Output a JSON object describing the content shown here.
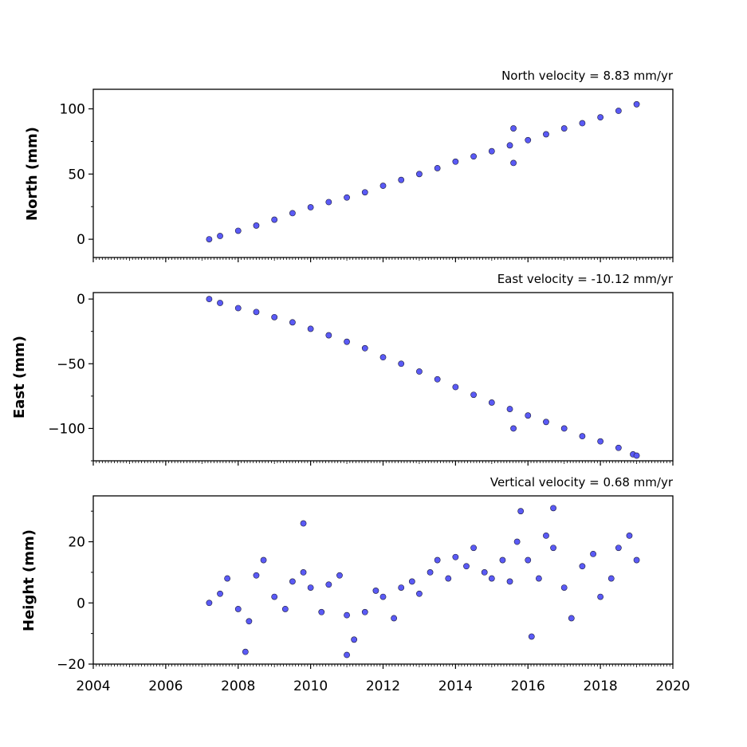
{
  "colors": {
    "marker_fill": "#5a5af5",
    "marker_edge": "#1a1a3a",
    "axes": "#000000",
    "background": "#ffffff"
  },
  "chart_data": [
    {
      "type": "scatter",
      "title": "North velocity = 8.83 mm/yr",
      "xlabel": "",
      "ylabel": "North (mm)",
      "xlim": [
        2004,
        2020
      ],
      "ylim": [
        -14,
        115
      ],
      "yticks": [
        0,
        50,
        100
      ],
      "ytick_labels": [
        "0",
        "50",
        "100"
      ],
      "grid": false,
      "series": [
        {
          "x": [
            2007.2,
            2007.5,
            2008.0,
            2008.5,
            2009.0,
            2009.5,
            2010.0,
            2010.5,
            2011.0,
            2011.5,
            2012.0,
            2012.5,
            2013.0,
            2013.5,
            2014.0,
            2014.5,
            2015.0,
            2015.5,
            2015.6,
            2015.6,
            2016.0,
            2016.5,
            2017.0,
            2017.5,
            2018.0,
            2018.5,
            2019.0
          ],
          "y": [
            0,
            2.5,
            6.5,
            10.5,
            15.0,
            20.0,
            24.5,
            28.5,
            32.0,
            36.0,
            41.0,
            45.5,
            50.0,
            54.5,
            59.5,
            63.5,
            67.5,
            72.0,
            85.0,
            58.5,
            76.0,
            80.5,
            85.0,
            89.0,
            93.5,
            98.5,
            103.5
          ]
        }
      ]
    },
    {
      "type": "scatter",
      "title": "East velocity = -10.12 mm/yr",
      "xlabel": "",
      "ylabel": "East (mm)",
      "xlim": [
        2004,
        2020
      ],
      "ylim": [
        -125,
        5
      ],
      "yticks": [
        0,
        -50,
        -100
      ],
      "ytick_labels": [
        "0",
        "−50",
        "−100"
      ],
      "grid": false,
      "series": [
        {
          "x": [
            2007.2,
            2007.5,
            2008.0,
            2008.5,
            2009.0,
            2009.5,
            2010.0,
            2010.5,
            2011.0,
            2011.5,
            2012.0,
            2012.5,
            2013.0,
            2013.5,
            2014.0,
            2014.5,
            2015.0,
            2015.5,
            2015.6,
            2016.0,
            2016.5,
            2017.0,
            2017.5,
            2018.0,
            2018.5,
            2018.9,
            2019.0
          ],
          "y": [
            0,
            -3,
            -7,
            -10,
            -14,
            -18,
            -23,
            -28,
            -33,
            -38,
            -45,
            -50,
            -56,
            -62,
            -68,
            -74,
            -80,
            -85,
            -100,
            -90,
            -95,
            -100,
            -106,
            -110,
            -115,
            -120,
            -121
          ]
        }
      ]
    },
    {
      "type": "scatter",
      "title": "Vertical velocity = 0.68 mm/yr",
      "xlabel": "",
      "ylabel": "Height (mm)",
      "xlim": [
        2004,
        2020
      ],
      "ylim": [
        -20,
        35
      ],
      "yticks": [
        -20,
        0,
        20
      ],
      "ytick_labels": [
        "−20",
        "0",
        "20"
      ],
      "xticks": [
        2004,
        2006,
        2008,
        2010,
        2012,
        2014,
        2016,
        2018,
        2020
      ],
      "xtick_labels": [
        "2004",
        "2006",
        "2008",
        "2010",
        "2012",
        "2014",
        "2016",
        "2018",
        "2020"
      ],
      "grid": false,
      "series": [
        {
          "x": [
            2007.2,
            2007.5,
            2007.7,
            2008.0,
            2008.3,
            2008.5,
            2008.7,
            2009.0,
            2009.3,
            2009.5,
            2009.8,
            2010.0,
            2010.3,
            2010.5,
            2010.8,
            2011.0,
            2011.2,
            2011.5,
            2011.8,
            2012.0,
            2012.3,
            2012.5,
            2012.8,
            2013.0,
            2013.3,
            2013.5,
            2013.8,
            2014.0,
            2014.3,
            2014.5,
            2014.8,
            2015.0,
            2015.3,
            2015.5,
            2015.7,
            2015.8,
            2016.0,
            2016.3,
            2016.5,
            2016.7,
            2017.0,
            2017.2,
            2017.5,
            2017.8,
            2018.0,
            2018.3,
            2018.5,
            2018.8,
            2019.0,
            2009.8,
            2016.1,
            2016.7,
            2011.0,
            2008.2
          ],
          "y": [
            0,
            3,
            8,
            -2,
            -6,
            9,
            14,
            2,
            -2,
            7,
            10,
            5,
            -3,
            6,
            9,
            -4,
            -12,
            -3,
            4,
            2,
            -5,
            5,
            7,
            3,
            10,
            14,
            8,
            15,
            12,
            18,
            10,
            8,
            14,
            7,
            20,
            30,
            14,
            8,
            22,
            18,
            5,
            -5,
            12,
            16,
            2,
            8,
            18,
            22,
            14,
            26,
            -11,
            31,
            -17,
            -16
          ]
        }
      ]
    }
  ]
}
